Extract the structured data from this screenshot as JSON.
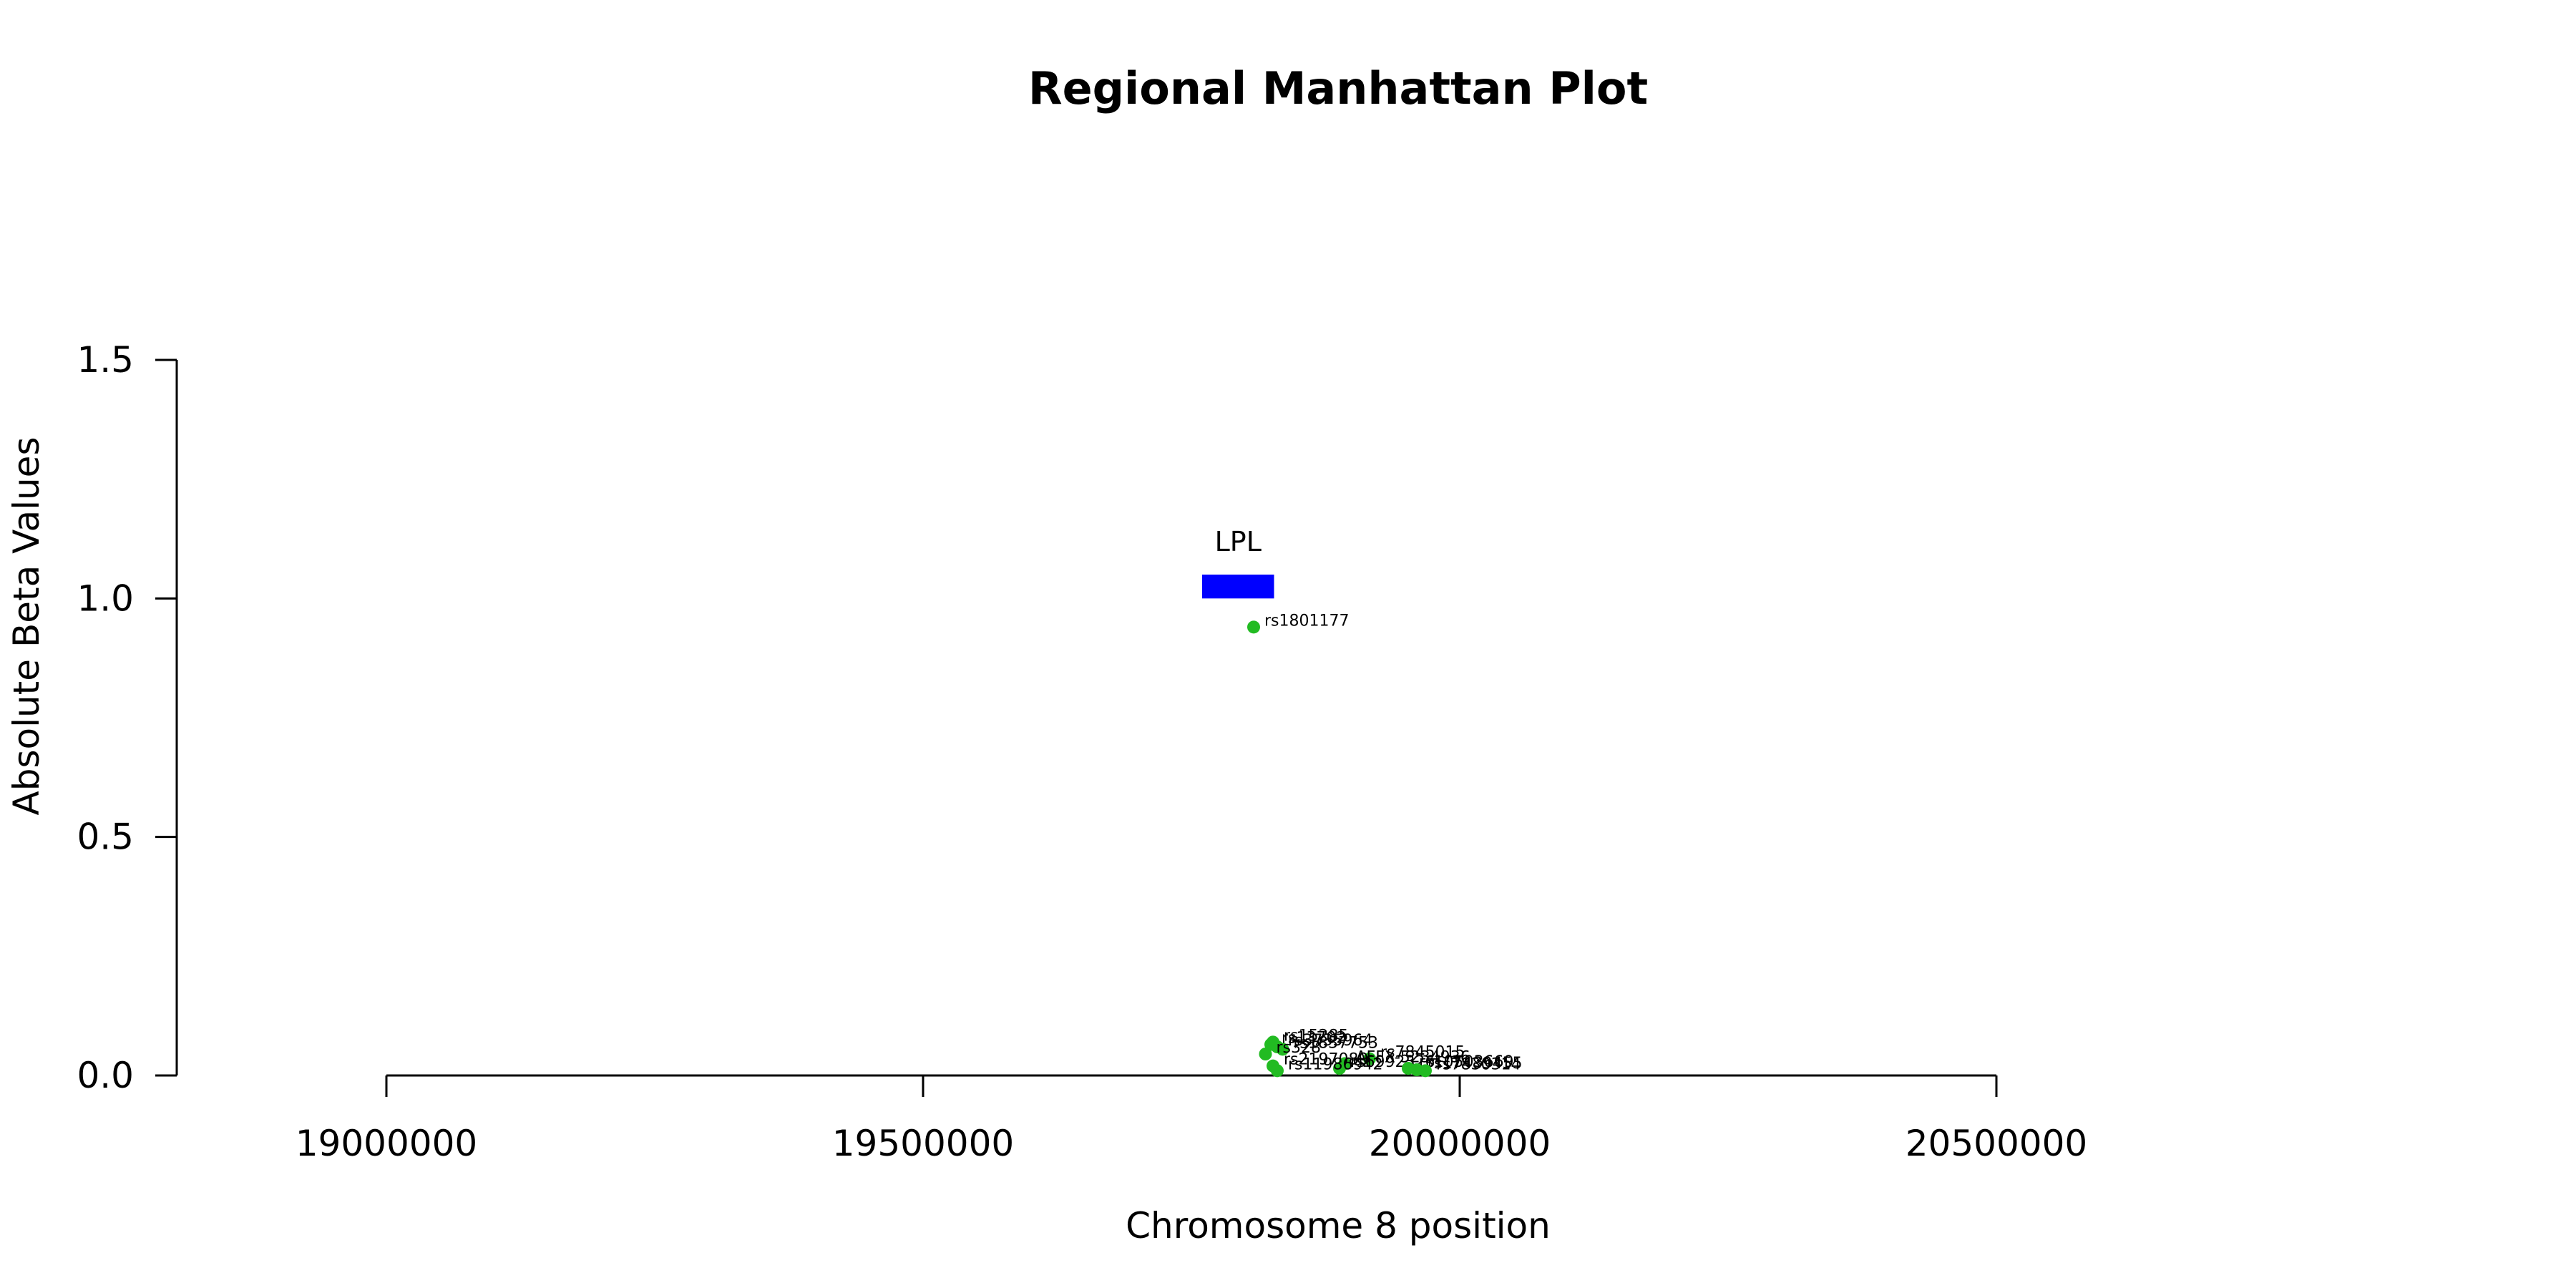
{
  "chart_data": {
    "type": "scatter",
    "title": "Regional Manhattan Plot",
    "xlabel": "Chromosome 8 position",
    "ylabel": "Absolute Beta Values",
    "xlim": [
      18810000,
      21000000
    ],
    "ylim": [
      0,
      1.5
    ],
    "xticks": [
      19000000,
      19500000,
      20000000,
      20500000
    ],
    "xtick_labels": [
      "19000000",
      "19500000",
      "20000000",
      "20500000"
    ],
    "yticks": [
      0,
      0.5,
      1.0,
      1.5
    ],
    "ytick_labels": [
      "0.0",
      "0.5",
      "1.0",
      "1.5"
    ],
    "grid": false,
    "point_color": "#22bb22",
    "gene_color": "#0000ff",
    "genes": [
      {
        "name": "LPL",
        "start": 19760000,
        "end": 19827000,
        "y_bottom": 1.0,
        "y_top": 1.05
      }
    ],
    "points": [
      {
        "label": "rs1801177",
        "x": 19808000,
        "y": 0.94
      },
      {
        "label": "rs15285",
        "x": 19826000,
        "y": 0.07
      },
      {
        "label": "rs13702",
        "x": 19824000,
        "y": 0.065
      },
      {
        "label": "rs3735964",
        "x": 19830000,
        "y": 0.06
      },
      {
        "label": "rs1837753",
        "x": 19835000,
        "y": 0.055
      },
      {
        "label": "rs328",
        "x": 19819000,
        "y": 0.045
      },
      {
        "label": "rs7845015",
        "x": 19916000,
        "y": 0.035
      },
      {
        "label": "AFFX-5234936",
        "x": 19893000,
        "y": 0.025
      },
      {
        "label": "rs2197089",
        "x": 19826000,
        "y": 0.02
      },
      {
        "label": "rs6992326",
        "x": 19888000,
        "y": 0.015
      },
      {
        "label": "rs10503669",
        "x": 19952000,
        "y": 0.015
      },
      {
        "label": "rs17489455",
        "x": 19960000,
        "y": 0.012
      },
      {
        "label": "rs7830314",
        "x": 19968000,
        "y": 0.01
      },
      {
        "label": "rs11986942",
        "x": 19830000,
        "y": 0.01
      }
    ]
  }
}
